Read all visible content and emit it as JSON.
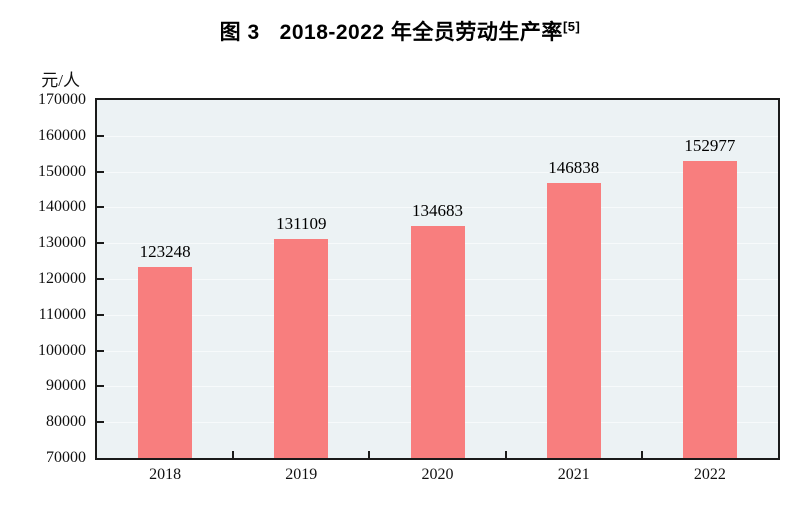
{
  "title": {
    "prefix": "图 3",
    "text": "2018-2022 年全员劳动生产率",
    "superscript": "[5]"
  },
  "chart_data": {
    "type": "bar",
    "title": "图 3 2018-2022 年全员劳动生产率[5]",
    "unit_label": "元/人",
    "categories": [
      "2018",
      "2019",
      "2020",
      "2021",
      "2022"
    ],
    "values": [
      123248,
      131109,
      134683,
      146838,
      152977
    ],
    "data_labels": [
      123248,
      131109,
      134683,
      146838,
      152977
    ],
    "ylim": [
      70000,
      170000
    ],
    "yticks": [
      70000,
      80000,
      90000,
      100000,
      110000,
      120000,
      130000,
      140000,
      150000,
      160000,
      170000
    ],
    "xlabel": "",
    "ylabel": "元/人",
    "grid": true,
    "legend_position": "none",
    "bar_color": "#F87E7E",
    "plot_background": "#ECF2F4",
    "gridline_color": "#F7FAFB",
    "axis_color": "#1A1A1A",
    "text_color": "#111111"
  }
}
